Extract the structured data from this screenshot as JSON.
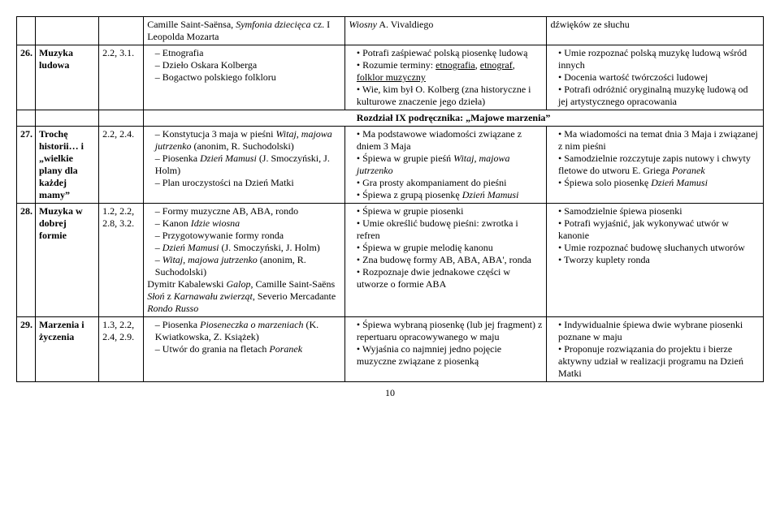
{
  "rows": {
    "r0": {
      "colA_line1_pre": "Camille Saint-Saënsa, ",
      "colA_line1_it": "Symfonia dziecięca",
      "colA_line1_post": " cz. I Leopolda Mozarta",
      "colB_it": "Wiosny",
      "colB_post": " A. Vivaldiego",
      "colC": "dźwięków ze słuchu"
    },
    "r26": {
      "num": "26.",
      "topic": "Muzyka ludowa",
      "codes": "2.2, 3.1.",
      "a1": "Etnografia",
      "a2": "Dzieło Oskara Kolberga",
      "a3": "Bogactwo polskiego folkloru",
      "b1": "Potrafi zaśpiewać polską piosenkę ludową",
      "b2_pre": "Rozumie terminy: ",
      "b2_u1": "etnografia",
      "b2_mid": ", ",
      "b2_u2": "etnograf",
      "b2_mid2": ", ",
      "b2_u3": "folklor muzyczny",
      "b3": "Wie, kim był O. Kolberg (zna historyczne i kulturowe znaczenie jego dzieła)",
      "c1": "Umie rozpoznać polską muzykę ludową wśród innych",
      "c2": "Docenia wartość twórczości ludowej",
      "c3": "Potrafi odróżnić oryginalną muzykę ludową od jej artystycznego opracowania"
    },
    "section": "Rozdział IX podręcznika: „Majowe marzenia”",
    "r27": {
      "num": "27.",
      "topic": "Trochę historii… i „wielkie plany dla każdej mamy”",
      "codes": "2.2, 2.4.",
      "a1_pre": "Konstytucja 3 maja w pieśni ",
      "a1_it": "Witaj, majowa jutrzenko",
      "a1_post": " (anonim, R. Suchodolski)",
      "a2_pre": "Piosenka ",
      "a2_it": "Dzień Mamusi",
      "a2_post": " (J. Smoczyński, J. Holm)",
      "a3": "Plan uroczystości na Dzień Matki",
      "b1": "Ma podstawowe wiadomości związane z dniem 3 Maja",
      "b2_pre": "Śpiewa w grupie pieśń ",
      "b2_it": "Witaj, majowa jutrzenko",
      "b3": "Gra prosty akompaniament do pieśni",
      "b4_pre": "Śpiewa z grupą piosenkę ",
      "b4_it": "Dzień Mamusi",
      "c1": "Ma wiadomości na temat dnia 3 Maja i związanej z nim pieśni",
      "c2": "Samodzielnie rozczytuje zapis nutowy i chwyty fletowe do utworu E. Griega ",
      "c2_it": "Poranek",
      "c3_pre": "Śpiewa solo piosenkę ",
      "c3_it": "Dzień Mamusi"
    },
    "r28": {
      "num": "28.",
      "topic": "Muzyka w dobrej formie",
      "codes": "1.2, 2.2, 2.8, 3.2.",
      "a1": "Formy muzyczne AB, ABA, rondo",
      "a2_pre": "Kanon ",
      "a2_it": "Idzie wiosna",
      "a3": "Przygotowywanie formy ronda",
      "a4_it": "Dzień Mamusi",
      "a4_post": " (J. Smoczyński, J. Holm)",
      "a5_it": "Witaj, majowa jutrzenko",
      "a5_post": " (anonim, R. Suchodolski)",
      "a_tail_pre": "Dymitr Kabalewski ",
      "a_tail_it1": "Galop",
      "a_tail_mid1": ", Camille Saint-Saëns ",
      "a_tail_it2": "Słoń",
      "a_tail_mid2": " z ",
      "a_tail_it3": "Karnawału zwierząt",
      "a_tail_mid3": ", Severio Mercadante ",
      "a_tail_it4": "Rondo Russo",
      "b1": "Śpiewa w grupie piosenki",
      "b2": "Umie określić budowę pieśni: zwrotka i refren",
      "b3": "Śpiewa w grupie melodię kanonu",
      "b4": "Zna budowę formy AB, ABA, ABA', ronda",
      "b5": "Rozpoznaje dwie jednakowe części w utworze o formie ABA",
      "c1": "Samodzielnie śpiewa piosenki",
      "c2": "Potrafi wyjaśnić, jak wykonywać utwór w kanonie",
      "c3": "Umie rozpoznać budowę słuchanych utworów",
      "c4": "Tworzy kuplety ronda"
    },
    "r29": {
      "num": "29.",
      "topic": "Marzenia i życzenia",
      "codes": "1.3, 2.2, 2.4, 2.9.",
      "a1_pre": "Piosenka ",
      "a1_it": "Pioseneczka o marzeniach",
      "a1_post": " (K. Kwiatkowska, Z. Książek)",
      "a2_pre": "Utwór do grania na fletach ",
      "a2_it": "Poranek",
      "b1": "Śpiewa wybraną piosenkę (lub jej fragment) z repertuaru opracowywanego w maju",
      "b2": "Wyjaśnia co najmniej jedno pojęcie muzyczne związane z piosenką",
      "c1": "Indywidualnie śpiewa dwie wybrane piosenki poznane w maju",
      "c2": "Proponuje rozwiązania do projektu i bierze aktywny udział w realizacji programu na Dzień Matki"
    }
  },
  "pagenum": "10"
}
